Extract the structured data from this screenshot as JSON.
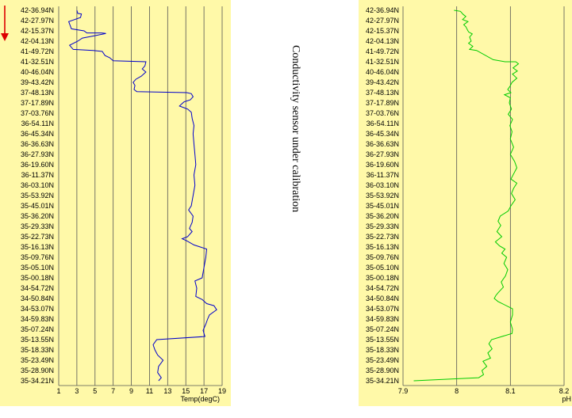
{
  "middle_note": "Conductivity sensor under calibration",
  "colors": {
    "panel_bg": "#fff9a8",
    "temp_line": "#0000cc",
    "ph_line": "#00cc00",
    "arrow": "#dd0000",
    "grid": "#555555"
  },
  "chart_data": [
    {
      "type": "line",
      "xlabel": "Temp(degC)",
      "xlim": [
        1,
        19
      ],
      "x_ticks": [
        "1",
        "3",
        "5",
        "7",
        "9",
        "11",
        "13",
        "15",
        "17",
        "19"
      ],
      "y_ticks": [
        "42-36.94N",
        "42-27.97N",
        "42-15.37N",
        "42-04.13N",
        "41-49.72N",
        "41-32.51N",
        "40-46.04N",
        "39-43.42N",
        "37-48.13N",
        "37-17.89N",
        "37-03.76N",
        "36-54.11N",
        "36-45.34N",
        "36-36.63N",
        "36-27.93N",
        "36-19.60N",
        "36-11.37N",
        "36-03.10N",
        "35-53.92N",
        "35-45.01N",
        "35-36.20N",
        "35-29.33N",
        "35-22.73N",
        "35-16.13N",
        "35-09.76N",
        "35-05.10N",
        "35-00.18N",
        "34-54.72N",
        "34-50.84N",
        "34-53.07N",
        "34-59.83N",
        "35-07.24N",
        "35-13.55N",
        "35-18.33N",
        "35-23.49N",
        "35-28.90N",
        "35-34.21N"
      ],
      "series": [
        {
          "points": [
            [
              3.0,
              0
            ],
            [
              3.1,
              0.3
            ],
            [
              3.5,
              0.35
            ],
            [
              3.4,
              0.7
            ],
            [
              2.1,
              1.1
            ],
            [
              2.4,
              1.8
            ],
            [
              3.8,
              2.0
            ],
            [
              4.1,
              2.2
            ],
            [
              5.7,
              2.2
            ],
            [
              6.2,
              2.25
            ],
            [
              4.8,
              2.5
            ],
            [
              3.6,
              2.7
            ],
            [
              3.1,
              3.0
            ],
            [
              2.2,
              3.4
            ],
            [
              2.6,
              3.8
            ],
            [
              4.8,
              3.9
            ],
            [
              5.8,
              4.0
            ],
            [
              6.1,
              4.4
            ],
            [
              6.6,
              4.6
            ],
            [
              7.0,
              4.9
            ],
            [
              10.6,
              5.0
            ],
            [
              10.5,
              5.4
            ],
            [
              10.2,
              5.7
            ],
            [
              10.6,
              6.0
            ],
            [
              10.1,
              6.4
            ],
            [
              9.5,
              6.7
            ],
            [
              9.2,
              7.0
            ],
            [
              9.4,
              7.3
            ],
            [
              9.3,
              7.7
            ],
            [
              9.6,
              7.9
            ],
            [
              15.1,
              8.0
            ],
            [
              15.6,
              8.1
            ],
            [
              15.8,
              8.4
            ],
            [
              15.5,
              8.7
            ],
            [
              14.8,
              8.9
            ],
            [
              14.3,
              9.3
            ],
            [
              15.2,
              9.6
            ],
            [
              15.6,
              9.9
            ],
            [
              15.7,
              10.5
            ],
            [
              15.9,
              11.2
            ],
            [
              15.8,
              12.0
            ],
            [
              15.9,
              13.0
            ],
            [
              16.0,
              14.0
            ],
            [
              16.1,
              15.0
            ],
            [
              15.9,
              16.0
            ],
            [
              16.0,
              17.0
            ],
            [
              15.8,
              18.0
            ],
            [
              15.6,
              19.0
            ],
            [
              15.3,
              19.4
            ],
            [
              15.8,
              20.0
            ],
            [
              15.7,
              20.6
            ],
            [
              15.4,
              21.2
            ],
            [
              15.7,
              21.5
            ],
            [
              15.2,
              22.0
            ],
            [
              14.6,
              22.2
            ],
            [
              15.1,
              22.4
            ],
            [
              15.9,
              22.8
            ],
            [
              16.6,
              23.0
            ],
            [
              17.3,
              23.2
            ],
            [
              17.2,
              24.0
            ],
            [
              17.0,
              25.0
            ],
            [
              16.8,
              26.0
            ],
            [
              16.0,
              26.3
            ],
            [
              16.2,
              27.0
            ],
            [
              16.1,
              27.8
            ],
            [
              16.8,
              28.1
            ],
            [
              17.3,
              28.5
            ],
            [
              18.1,
              28.7
            ],
            [
              18.4,
              29.1
            ],
            [
              17.6,
              29.6
            ],
            [
              17.4,
              30.0
            ],
            [
              17.2,
              30.5
            ],
            [
              16.9,
              31.1
            ],
            [
              17.1,
              31.7
            ],
            [
              11.8,
              32.0
            ],
            [
              11.4,
              32.5
            ],
            [
              11.6,
              33.0
            ],
            [
              11.9,
              33.5
            ],
            [
              12.5,
              34.0
            ],
            [
              12.0,
              34.6
            ],
            [
              11.9,
              35.2
            ],
            [
              12.3,
              35.7
            ],
            [
              12.0,
              36.0
            ]
          ]
        }
      ]
    },
    {
      "type": "line",
      "xlabel": "pH",
      "xlim": [
        7.9,
        8.2
      ],
      "x_ticks": [
        "7.9",
        "8",
        "8.1",
        "8.2"
      ],
      "y_ticks": [
        "42-36.94N",
        "42-27.97N",
        "42-15.37N",
        "42-04.13N",
        "41-49.72N",
        "41-32.51N",
        "40-46.04N",
        "39-43.42N",
        "37-48.13N",
        "37-17.89N",
        "37-03.76N",
        "36-54.11N",
        "36-45.34N",
        "36-36.63N",
        "36-27.93N",
        "36-19.60N",
        "36-11.37N",
        "36-03.10N",
        "35-53.92N",
        "35-45.01N",
        "35-36.20N",
        "35-29.33N",
        "35-22.73N",
        "35-16.13N",
        "35-09.76N",
        "35-05.10N",
        "35-00.18N",
        "34-54.72N",
        "34-50.84N",
        "34-53.07N",
        "34-59.83N",
        "35-07.24N",
        "35-13.55N",
        "35-18.33N",
        "35-23.49N",
        "35-28.90N",
        "35-34.21N"
      ],
      "series": [
        {
          "points": [
            [
              7.995,
              0
            ],
            [
              8.007,
              0.1
            ],
            [
              8.012,
              0.4
            ],
            [
              8.017,
              0.6
            ],
            [
              8.011,
              0.9
            ],
            [
              8.021,
              1.1
            ],
            [
              8.013,
              1.4
            ],
            [
              8.017,
              1.6
            ],
            [
              8.02,
              1.9
            ],
            [
              8.022,
              2.1
            ],
            [
              8.029,
              2.3
            ],
            [
              8.024,
              2.6
            ],
            [
              8.027,
              3.0
            ],
            [
              8.022,
              3.2
            ],
            [
              8.03,
              3.5
            ],
            [
              8.024,
              3.8
            ],
            [
              8.037,
              3.9
            ],
            [
              8.068,
              4.8
            ],
            [
              8.09,
              5.0
            ],
            [
              8.11,
              5.0
            ],
            [
              8.115,
              5.2
            ],
            [
              8.105,
              5.6
            ],
            [
              8.113,
              5.9
            ],
            [
              8.104,
              6.2
            ],
            [
              8.112,
              6.6
            ],
            [
              8.103,
              7.0
            ],
            [
              8.099,
              7.4
            ],
            [
              8.095,
              7.7
            ],
            [
              8.101,
              8.0
            ],
            [
              8.089,
              8.2
            ],
            [
              8.1,
              8.5
            ],
            [
              8.098,
              9.0
            ],
            [
              8.102,
              9.6
            ],
            [
              8.096,
              10.1
            ],
            [
              8.104,
              10.6
            ],
            [
              8.099,
              11.2
            ],
            [
              8.103,
              11.8
            ],
            [
              8.1,
              12.5
            ],
            [
              8.106,
              13.3
            ],
            [
              8.1,
              14.0
            ],
            [
              8.108,
              14.7
            ],
            [
              8.112,
              15.3
            ],
            [
              8.106,
              15.9
            ],
            [
              8.101,
              16.4
            ],
            [
              8.112,
              16.8
            ],
            [
              8.106,
              17.3
            ],
            [
              8.102,
              17.8
            ],
            [
              8.109,
              18.4
            ],
            [
              8.101,
              19.0
            ],
            [
              8.096,
              19.5
            ],
            [
              8.081,
              20.0
            ],
            [
              8.077,
              20.5
            ],
            [
              8.082,
              20.9
            ],
            [
              8.075,
              21.5
            ],
            [
              8.084,
              22.0
            ],
            [
              8.072,
              22.5
            ],
            [
              8.08,
              22.9
            ],
            [
              8.09,
              23.2
            ],
            [
              8.084,
              23.6
            ],
            [
              8.093,
              24.0
            ],
            [
              8.088,
              24.6
            ],
            [
              8.095,
              25.2
            ],
            [
              8.091,
              25.8
            ],
            [
              8.083,
              26.4
            ],
            [
              8.087,
              26.9
            ],
            [
              8.078,
              27.4
            ],
            [
              8.073,
              27.7
            ],
            [
              8.07,
              28.0
            ],
            [
              8.077,
              28.3
            ],
            [
              8.104,
              29.0
            ],
            [
              8.104,
              29.6
            ],
            [
              8.1,
              30.3
            ],
            [
              8.104,
              31.0
            ],
            [
              8.103,
              31.4
            ],
            [
              8.065,
              32.0
            ],
            [
              8.06,
              32.4
            ],
            [
              8.066,
              32.9
            ],
            [
              8.058,
              33.3
            ],
            [
              8.063,
              33.8
            ],
            [
              8.049,
              34.1
            ],
            [
              8.056,
              34.6
            ],
            [
              8.047,
              35.0
            ],
            [
              8.05,
              35.4
            ],
            [
              8.041,
              35.7
            ],
            [
              7.92,
              36.0
            ]
          ]
        }
      ]
    }
  ]
}
